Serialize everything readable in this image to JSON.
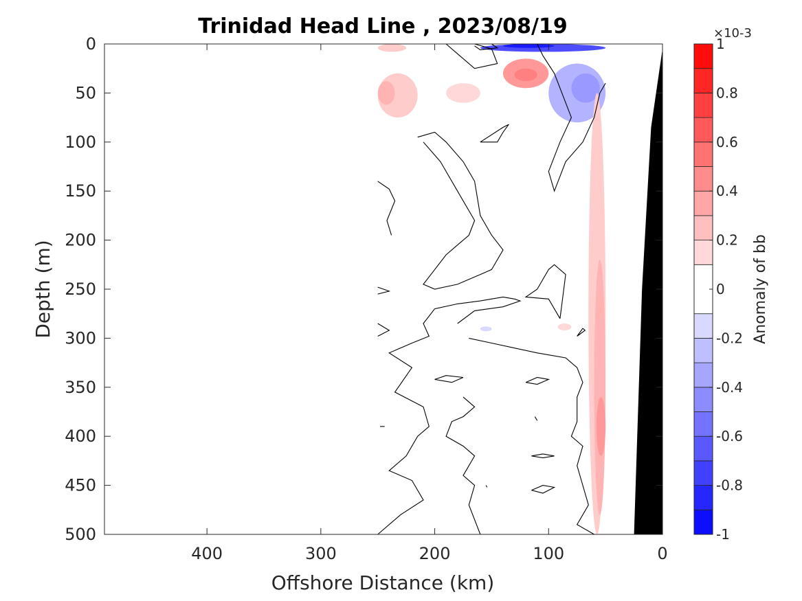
{
  "chart_data": {
    "type": "heatmap",
    "title": "Trinidad Head Line , 2023/08/19",
    "xlabel": "Offshore Distance (km)",
    "ylabel": "Depth (m)",
    "xlim": [
      490,
      0
    ],
    "ylim": [
      0,
      500
    ],
    "x_reversed": true,
    "y_reversed": true,
    "xticks": [
      400,
      300,
      200,
      100,
      0
    ],
    "yticks": [
      0,
      50,
      100,
      150,
      200,
      250,
      300,
      350,
      400,
      450,
      500
    ],
    "colorbar": {
      "label": "Anomaly of bb",
      "multiplier": "×10-3",
      "range": [
        -1,
        1
      ],
      "ticks": [
        -1,
        -0.8,
        -0.6,
        -0.4,
        -0.2,
        0,
        0.2,
        0.4,
        0.6,
        0.8,
        1
      ],
      "tick_labels": [
        "-1",
        "-0.8",
        "-0.6",
        "-0.4",
        "-0.2",
        "0",
        "0.2",
        "0.4",
        "0.6",
        "0.8",
        "1"
      ],
      "levels": [
        -1,
        -0.9,
        -0.8,
        -0.7,
        -0.6,
        -0.5,
        -0.4,
        -0.3,
        -0.2,
        -0.1,
        0.1,
        0.2,
        0.3,
        0.4,
        0.5,
        0.6,
        0.7,
        0.8,
        0.9,
        1
      ],
      "colormap": "blue-white-red",
      "negative_color": "#0000ff",
      "positive_color": "#ff0000"
    },
    "data_extent": {
      "x": [
        250,
        50
      ],
      "y": [
        0,
        500
      ]
    },
    "bathymetry": {
      "color": "#000000",
      "points": [
        [
          0,
          5
        ],
        [
          10,
          85
        ],
        [
          18,
          250
        ],
        [
          25,
          500
        ]
      ]
    },
    "anomaly_regions": [
      {
        "label": "surface negative",
        "x": [
          160,
          50
        ],
        "y": [
          0,
          8
        ],
        "value": -0.7
      },
      {
        "label": "surface negative core",
        "x": [
          140,
          95
        ],
        "y": [
          0,
          4
        ],
        "value": -0.9
      },
      {
        "label": "shallow negative",
        "x": [
          100,
          50
        ],
        "y": [
          20,
          80
        ],
        "value": -0.3
      },
      {
        "label": "shallow negative core",
        "x": [
          80,
          55
        ],
        "y": [
          30,
          60
        ],
        "value": -0.4
      },
      {
        "label": "shallow positive",
        "x": [
          140,
          100
        ],
        "y": [
          15,
          45
        ],
        "value": 0.4
      },
      {
        "label": "shallow positive core",
        "x": [
          130,
          110
        ],
        "y": [
          25,
          38
        ],
        "value": 0.5
      },
      {
        "label": "western surface positive",
        "x": [
          250,
          225
        ],
        "y": [
          0,
          8
        ],
        "value": 0.2
      },
      {
        "label": "western shallow positive",
        "x": [
          250,
          215
        ],
        "y": [
          30,
          75
        ],
        "value": 0.2
      },
      {
        "label": "western shallow positive core",
        "x": [
          250,
          235
        ],
        "y": [
          38,
          62
        ],
        "value": 0.3
      },
      {
        "label": "mid shallow positive",
        "x": [
          190,
          160
        ],
        "y": [
          40,
          60
        ],
        "value": 0.15
      },
      {
        "label": "coastal positive band",
        "x": [
          65,
          50
        ],
        "y": [
          50,
          500
        ],
        "value": 0.2
      },
      {
        "label": "coastal positive mid",
        "x": [
          60,
          50
        ],
        "y": [
          220,
          480
        ],
        "value": 0.3
      },
      {
        "label": "coastal positive core",
        "x": [
          58,
          50
        ],
        "y": [
          360,
          420
        ],
        "value": 0.4
      },
      {
        "label": "small positive patch",
        "x": [
          92,
          80
        ],
        "y": [
          285,
          292
        ],
        "value": 0.15
      },
      {
        "label": "small negative patch",
        "x": [
          160,
          150
        ],
        "y": [
          288,
          293
        ],
        "value": -0.15
      }
    ],
    "zero_contours": [
      [
        [
          190,
          0
        ],
        [
          180,
          10
        ],
        [
          165,
          25
        ],
        [
          145,
          20
        ],
        [
          150,
          5
        ],
        [
          165,
          0
        ]
      ],
      [
        [
          150,
          0
        ],
        [
          145,
          4
        ],
        [
          160,
          6
        ],
        [
          165,
          2
        ]
      ],
      [
        [
          110,
          0
        ],
        [
          105,
          12
        ],
        [
          95,
          30
        ],
        [
          90,
          45
        ],
        [
          80,
          75
        ],
        [
          90,
          100
        ],
        [
          100,
          130
        ],
        [
          95,
          150
        ],
        [
          85,
          120
        ],
        [
          70,
          100
        ],
        [
          60,
          75
        ],
        [
          55,
          50
        ],
        [
          50,
          40
        ]
      ],
      [
        [
          160,
          100
        ],
        [
          140,
          85
        ],
        [
          135,
          82
        ],
        [
          140,
          90
        ],
        [
          145,
          100
        ],
        [
          160,
          100
        ]
      ],
      [
        [
          215,
          95
        ],
        [
          200,
          90
        ],
        [
          190,
          100
        ],
        [
          175,
          120
        ],
        [
          165,
          140
        ],
        [
          160,
          175
        ],
        [
          150,
          195
        ],
        [
          140,
          210
        ],
        [
          150,
          230
        ],
        [
          160,
          235
        ],
        [
          180,
          245
        ],
        [
          200,
          250
        ],
        [
          210,
          245
        ],
        [
          200,
          230
        ],
        [
          190,
          215
        ],
        [
          180,
          205
        ],
        [
          170,
          195
        ],
        [
          165,
          180
        ],
        [
          180,
          150
        ],
        [
          195,
          120
        ],
        [
          210,
          100
        ]
      ],
      [
        [
          250,
          140
        ],
        [
          240,
          148
        ],
        [
          235,
          160
        ],
        [
          242,
          180
        ],
        [
          238,
          195
        ]
      ],
      [
        [
          200,
          270
        ],
        [
          180,
          265
        ],
        [
          160,
          262
        ],
        [
          140,
          258
        ],
        [
          130,
          260
        ],
        [
          125,
          262
        ],
        [
          140,
          268
        ],
        [
          165,
          272
        ],
        [
          180,
          285
        ]
      ],
      [
        [
          200,
          270
        ],
        [
          210,
          285
        ],
        [
          205,
          298
        ],
        [
          220,
          305
        ],
        [
          240,
          315
        ],
        [
          220,
          330
        ],
        [
          235,
          355
        ],
        [
          210,
          370
        ],
        [
          205,
          390
        ],
        [
          215,
          400
        ],
        [
          225,
          420
        ],
        [
          240,
          435
        ],
        [
          220,
          445
        ],
        [
          210,
          465
        ],
        [
          230,
          480
        ],
        [
          250,
          500
        ]
      ],
      [
        [
          170,
          300
        ],
        [
          150,
          305
        ],
        [
          130,
          310
        ],
        [
          110,
          315
        ],
        [
          85,
          320
        ],
        [
          75,
          330
        ],
        [
          70,
          345
        ],
        [
          75,
          360
        ],
        [
          75,
          385
        ],
        [
          80,
          400
        ],
        [
          70,
          410
        ],
        [
          75,
          430
        ],
        [
          70,
          450
        ],
        [
          65,
          470
        ],
        [
          75,
          490
        ],
        [
          60,
          500
        ]
      ],
      [
        [
          175,
          340
        ],
        [
          185,
          345
        ],
        [
          200,
          342
        ],
        [
          190,
          338
        ],
        [
          175,
          340
        ]
      ],
      [
        [
          175,
          360
        ],
        [
          165,
          370
        ],
        [
          175,
          380
        ],
        [
          185,
          385
        ],
        [
          190,
          400
        ],
        [
          175,
          410
        ],
        [
          165,
          420
        ],
        [
          175,
          440
        ],
        [
          165,
          450
        ],
        [
          170,
          470
        ],
        [
          160,
          500
        ]
      ],
      [
        [
          120,
          345
        ],
        [
          110,
          347
        ],
        [
          100,
          342
        ],
        [
          110,
          340
        ],
        [
          120,
          345
        ]
      ],
      [
        [
          115,
          420
        ],
        [
          105,
          422
        ],
        [
          95,
          420
        ],
        [
          105,
          418
        ],
        [
          115,
          420
        ]
      ],
      [
        [
          115,
          455
        ],
        [
          105,
          458
        ],
        [
          95,
          452
        ],
        [
          105,
          450
        ],
        [
          115,
          455
        ]
      ],
      [
        [
          90,
          280
        ],
        [
          85,
          235
        ],
        [
          95,
          225
        ],
        [
          100,
          230
        ],
        [
          110,
          250
        ],
        [
          120,
          258
        ],
        [
          100,
          260
        ],
        [
          90,
          280
        ]
      ],
      [
        [
          70,
          290
        ],
        [
          75,
          298
        ],
        [
          68,
          292
        ],
        [
          70,
          290
        ]
      ],
      [
        [
          250,
          248
        ],
        [
          240,
          252
        ],
        [
          250,
          255
        ]
      ],
      [
        [
          250,
          285
        ],
        [
          240,
          292
        ],
        [
          250,
          298
        ]
      ],
      [
        [
          248,
          390
        ],
        [
          244,
          390
        ]
      ],
      [
        [
          112,
          380
        ],
        [
          110,
          384
        ]
      ],
      [
        [
          155,
          450
        ],
        [
          154,
          452
        ]
      ]
    ]
  }
}
